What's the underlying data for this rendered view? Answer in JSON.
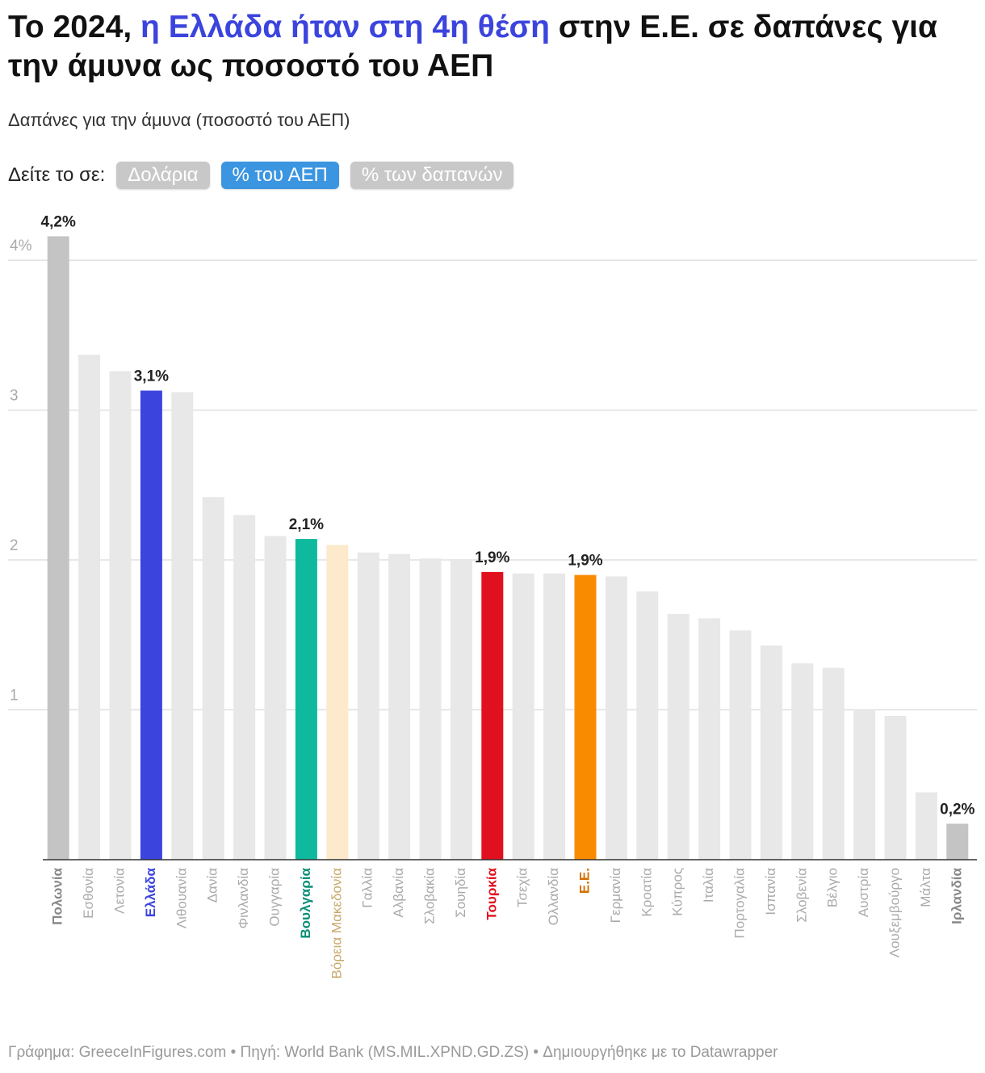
{
  "chart_data": {
    "type": "bar",
    "title_parts": [
      "Το 2024, ",
      "η Ελλάδα ήταν στη 4η θέση",
      " στην Ε.Ε. σε δαπάνες για την άμυνα ως ποσοστό του ΑΕΠ"
    ],
    "title_highlight_color": "#3b44dd",
    "subtitle": "Δαπάνες για την άμυνα (ποσοστό του ΑΕΠ)",
    "view_prompt": "Δείτε το σε:",
    "view_buttons": [
      "Δολάρια",
      "% του ΑΕΠ",
      "% των δαπανών"
    ],
    "active_button": 1,
    "categories": [
      "Πολωνία",
      "Εσθονία",
      "Λετονία",
      "Ελλάδα",
      "Λιθουανία",
      "Δανία",
      "Φινλανδία",
      "Ουγγαρία",
      "Βουλγαρία",
      "Βόρεια Μακεδονία",
      "Γαλλία",
      "Αλβανία",
      "Σλοβακία",
      "Σουηδία",
      "Τουρκία",
      "Τσεχία",
      "Ολλανδία",
      "Ε.Ε.",
      "Γερμανία",
      "Κροατία",
      "Κύπρος",
      "Ιταλία",
      "Πορτογαλία",
      "Ισπανία",
      "Σλοβενία",
      "Βέλγιο",
      "Αυστρία",
      "Λουξεμβούργο",
      "Μάλτα",
      "Ιρλανδία"
    ],
    "values": [
      4.16,
      3.37,
      3.26,
      3.13,
      3.12,
      2.42,
      2.3,
      2.16,
      2.14,
      2.1,
      2.05,
      2.04,
      2.01,
      2.0,
      1.92,
      1.91,
      1.91,
      1.9,
      1.89,
      1.79,
      1.64,
      1.61,
      1.53,
      1.43,
      1.31,
      1.28,
      1.0,
      0.96,
      0.45,
      0.24
    ],
    "value_labels": [
      "4,2%",
      null,
      null,
      "3,1%",
      null,
      null,
      null,
      null,
      "2,1%",
      null,
      null,
      null,
      null,
      null,
      "1,9%",
      null,
      null,
      "1,9%",
      null,
      null,
      null,
      null,
      null,
      null,
      null,
      null,
      null,
      null,
      null,
      "0,2%"
    ],
    "colors": [
      "#c4c4c4",
      "#e8e8e8",
      "#e8e8e8",
      "#3b44dd",
      "#e8e8e8",
      "#e8e8e8",
      "#e8e8e8",
      "#e8e8e8",
      "#0fb99d",
      "#fde9cc",
      "#e8e8e8",
      "#e8e8e8",
      "#e8e8e8",
      "#e8e8e8",
      "#e0101e",
      "#e8e8e8",
      "#e8e8e8",
      "#f98b00",
      "#e8e8e8",
      "#e8e8e8",
      "#e8e8e8",
      "#e8e8e8",
      "#e8e8e8",
      "#e8e8e8",
      "#e8e8e8",
      "#e8e8e8",
      "#e8e8e8",
      "#e8e8e8",
      "#e8e8e8",
      "#c4c4c4"
    ],
    "category_label_colors": [
      "#888888",
      "#aaaaaa",
      "#aaaaaa",
      "#3b44dd",
      "#aaaaaa",
      "#aaaaaa",
      "#aaaaaa",
      "#aaaaaa",
      "#0a8f78",
      "#c7a96b",
      "#aaaaaa",
      "#aaaaaa",
      "#aaaaaa",
      "#aaaaaa",
      "#e0101e",
      "#aaaaaa",
      "#aaaaaa",
      "#d46f00",
      "#aaaaaa",
      "#aaaaaa",
      "#aaaaaa",
      "#aaaaaa",
      "#aaaaaa",
      "#aaaaaa",
      "#aaaaaa",
      "#aaaaaa",
      "#aaaaaa",
      "#aaaaaa",
      "#aaaaaa",
      "#888888"
    ],
    "ylim": [
      0,
      4.2
    ],
    "yticks": [
      {
        "value": 4,
        "label": "4%"
      },
      3,
      2,
      1
    ],
    "grid": true,
    "footer": "Γράφημα: GreeceInFigures.com • Πηγή: World Bank (MS.MIL.XPND.GD.ZS) • Δημιουργήθηκε με το Datawrapper"
  }
}
